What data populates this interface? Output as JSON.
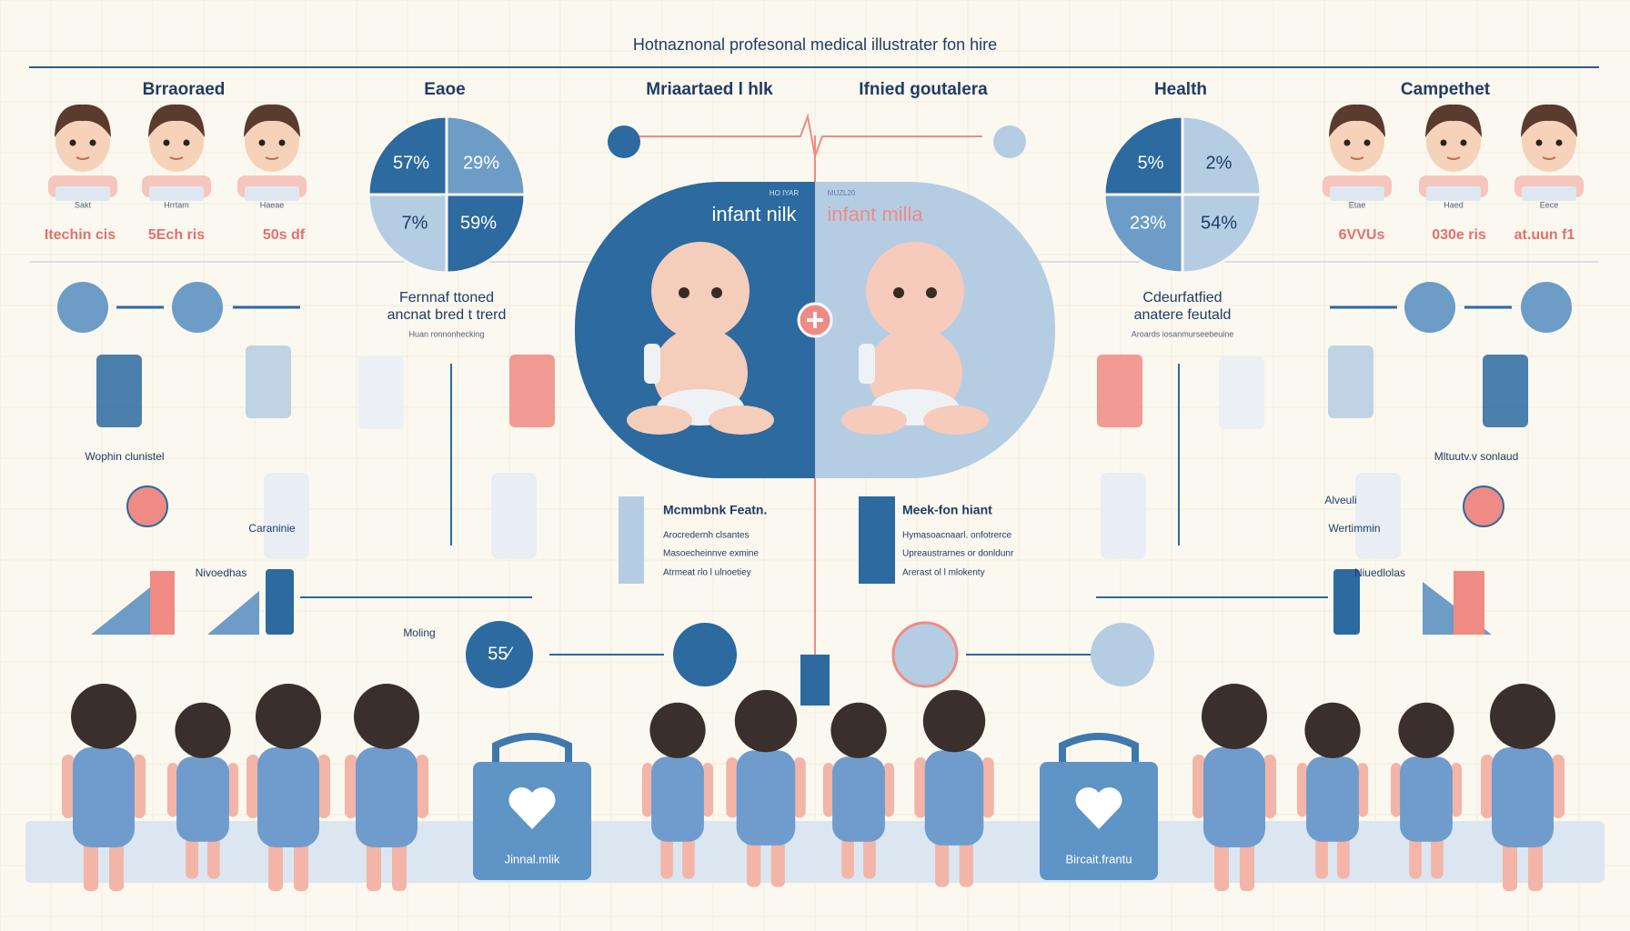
{
  "header": {
    "title": "Hotnaznonal profesonal medical illustrater fon hire"
  },
  "columns": [
    "Brraoraed",
    "Eaoe",
    "Mriaartaed l hlk",
    "Ifnied goutalera",
    "Health",
    "Campethet"
  ],
  "left_profiles": {
    "tags": [
      "Sakt",
      "Hrrtam",
      "Haeae"
    ],
    "labels": [
      "Itechin cis",
      "5Ech ris",
      "50s df"
    ]
  },
  "right_profiles": {
    "tags": [
      "Etae",
      "Haed",
      "Eece"
    ],
    "labels": [
      "6VVUs",
      "030e ris",
      "at.uun f1"
    ]
  },
  "left_pie": {
    "quadrants": [
      "57%",
      "29%",
      "7%",
      "59%"
    ]
  },
  "right_pie": {
    "quadrants": [
      "5%",
      "2%",
      "23%",
      "54%"
    ]
  },
  "center": {
    "left_caption": "HO IYAR",
    "left_title": "infant nilk",
    "right_caption": "MUZL20",
    "right_title": "infant milla"
  },
  "left_note": {
    "lines": [
      "Fernnaf ttoned",
      "ancnat bred t trerd",
      "Huan ronnonhecking"
    ]
  },
  "right_note": {
    "lines": [
      "Cdeurfatfied",
      "anatere feutald",
      "Aroards iosanmurseebeuine"
    ]
  },
  "labels": {
    "left_a": "Wophin clunistel",
    "left_b": "Caraninie",
    "left_c": "Nivoedhas",
    "left_d": "Moling",
    "badge": "55⁄",
    "right_a": "Mltuutv.v sonlaud",
    "right_b": "Alveuli",
    "right_c": "Wertimmin",
    "right_d": "Niuedlolas"
  },
  "left_list": [
    "Mcmmbnk Featn.",
    "Arocredernh clsantes",
    "Masoecheinnve exmine",
    "Atrmeat rlo l ulnoetiey"
  ],
  "right_list": [
    "Meek-fon hiant",
    "Hymasoacnaarl. onfotrerce",
    "Upreaustrarnes or donldunr",
    "Arerast ol l mlokenty"
  ],
  "bags": [
    "Jinnal.mlik",
    "Bircait.frantu"
  ]
}
